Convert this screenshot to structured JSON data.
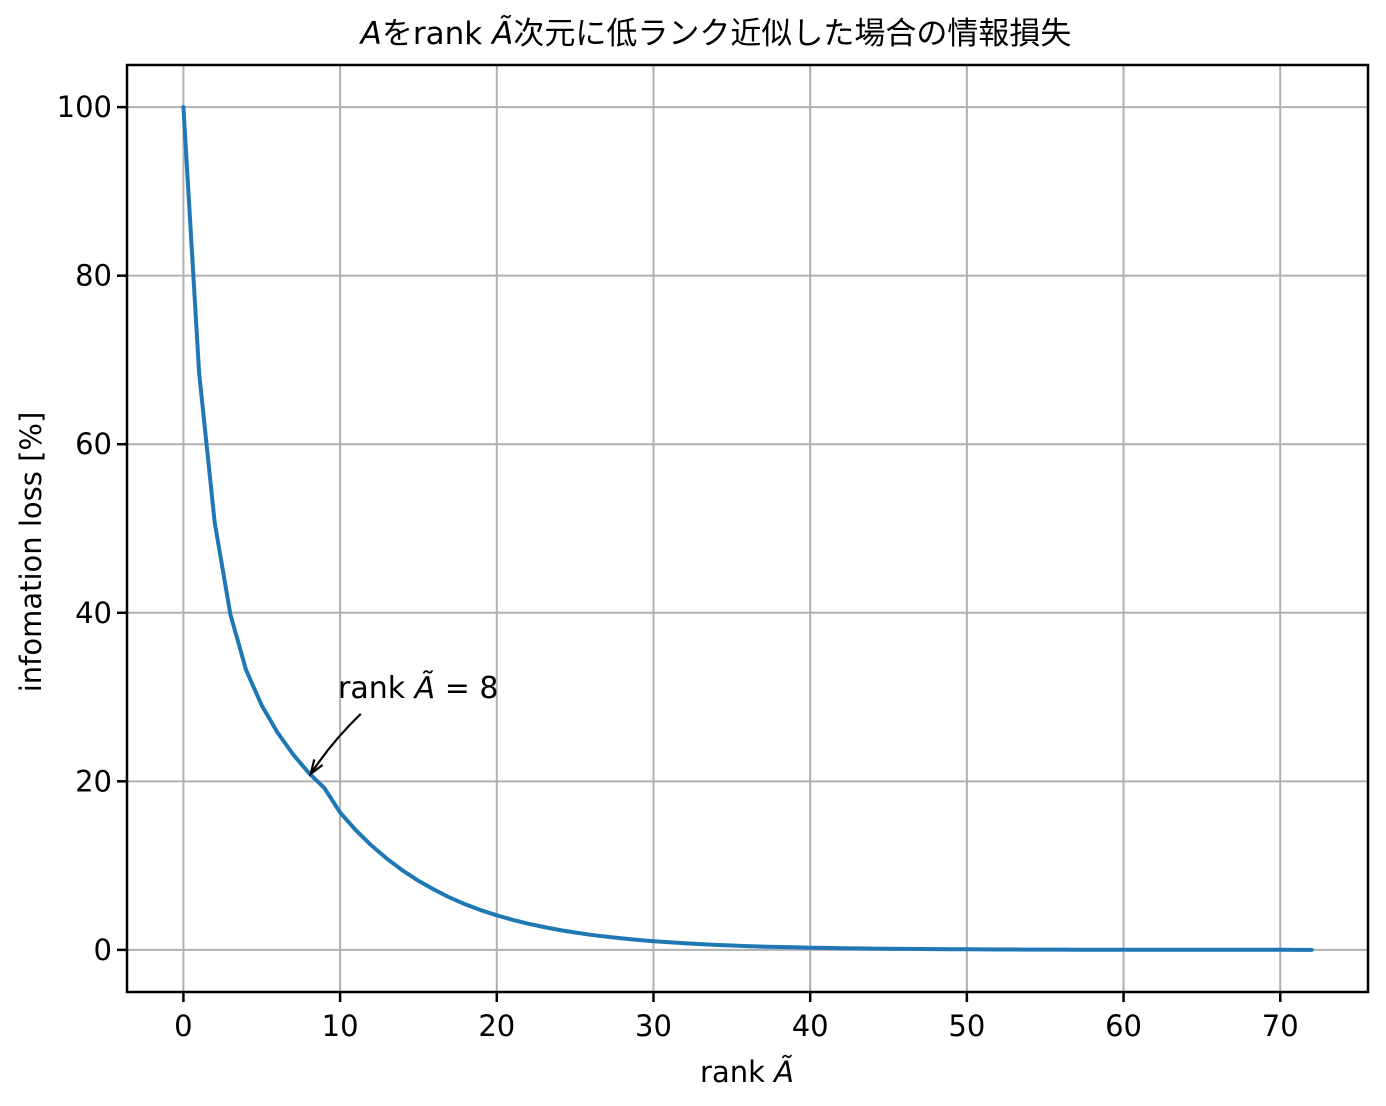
{
  "chart_data": {
    "type": "line",
    "title": "Aをrank Ã次元に低ランク近似した場合の情報損失",
    "title_parts": [
      [
        "A",
        1
      ],
      [
        "をrank ",
        0
      ],
      [
        "Ã",
        1
      ],
      [
        "次元に低ランク近似した場合の情報損失",
        0
      ]
    ],
    "xlabel": "rank Ã",
    "xlabel_parts": [
      [
        "rank ",
        0
      ],
      [
        "Ã",
        1
      ]
    ],
    "ylabel": "infomation loss [%]",
    "x_tick_labels": [
      "0",
      "10",
      "20",
      "30",
      "40",
      "50",
      "60",
      "70"
    ],
    "x_ticks": [
      0,
      10,
      20,
      30,
      40,
      50,
      60,
      70
    ],
    "y_tick_labels": [
      "0",
      "20",
      "40",
      "60",
      "80",
      "100"
    ],
    "y_ticks": [
      0,
      20,
      40,
      60,
      80,
      100
    ],
    "xlim": [
      -3.6,
      75.6
    ],
    "ylim": [
      -5,
      105
    ],
    "grid": true,
    "legend": null,
    "line_color": "#1f77b4",
    "grid_color": "#b0b0b0",
    "spine_color": "#000000",
    "annotation": {
      "text": "rank Ã = 8",
      "parts": [
        [
          "rank ",
          0
        ],
        [
          "Ã",
          1
        ],
        [
          " = 8",
          0
        ]
      ],
      "point_x": 8,
      "point_y": 21
    },
    "x": [
      0,
      1,
      2,
      3,
      4,
      5,
      6,
      7,
      8,
      9,
      10,
      11,
      12,
      13,
      14,
      15,
      16,
      17,
      18,
      19,
      20,
      21,
      22,
      23,
      24,
      25,
      26,
      27,
      28,
      29,
      30,
      31,
      32,
      33,
      34,
      35,
      36,
      37,
      38,
      39,
      40,
      41,
      42,
      43,
      44,
      45,
      46,
      47,
      48,
      49,
      50,
      51,
      52,
      53,
      54,
      55,
      56,
      57,
      58,
      59,
      60,
      61,
      62,
      63,
      64,
      65,
      66,
      67,
      68,
      69,
      70,
      71,
      72
    ],
    "y": [
      100,
      68.5,
      50.7,
      39.8,
      33.2,
      29.0,
      25.8,
      23.2,
      21.0,
      19.2,
      16.3,
      14.2,
      12.4,
      10.8,
      9.4,
      8.2,
      7.15,
      6.2,
      5.4,
      4.7,
      4.1,
      3.57,
      3.11,
      2.71,
      2.36,
      2.06,
      1.79,
      1.56,
      1.36,
      1.18,
      1.03,
      0.9,
      0.78,
      0.68,
      0.59,
      0.52,
      0.45,
      0.39,
      0.34,
      0.3,
      0.26,
      0.23,
      0.2,
      0.17,
      0.15,
      0.13,
      0.11,
      0.1,
      0.085,
      0.074,
      0.064,
      0.056,
      0.049,
      0.042,
      0.037,
      0.032,
      0.028,
      0.024,
      0.021,
      0.018,
      0.016,
      0.014,
      0.012,
      0.01,
      0.009,
      0.007,
      0.006,
      0.005,
      0.004,
      0.003,
      0.002,
      0.001,
      0
    ]
  }
}
